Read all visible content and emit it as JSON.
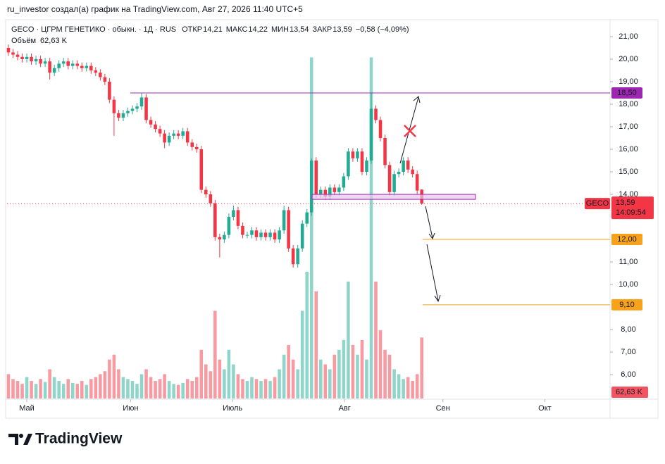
{
  "chart_data": {
    "type": "candlestick",
    "attribution": "ru_investor создал(а) график на TradingView.com, Авг 27, 2026 11:40 UTC+5",
    "symbol_line": "GECO · ЦГРМ ГЕНЕТИКО · обыкн. · 1Д · RUS",
    "last_bar": [
      {
        "name": "ОТКР",
        "value": 14.21,
        "label": "14,21"
      },
      {
        "name": "МАКС",
        "value": 14.22,
        "label": "14,22"
      },
      {
        "name": "МИН",
        "value": 13.54,
        "label": "13,54"
      },
      {
        "name": "ЗАКР",
        "value": 13.59,
        "label": "13,59"
      }
    ],
    "change": "−0,58 (−4,09%)",
    "colors": {
      "up": "#22ab94",
      "down": "#f23645"
    },
    "open": [
      20.5,
      20.3,
      20.2,
      20.1,
      20.0,
      20.1,
      19.9,
      20.0,
      19.8,
      19.9,
      19.4,
      19.6,
      19.8,
      19.9,
      19.7,
      19.8,
      19.7,
      19.6,
      19.7,
      19.5,
      19.4,
      19.2,
      19.0,
      18.2,
      17.6,
      17.4,
      17.6,
      17.7,
      17.8,
      17.9,
      18.3,
      17.3,
      17.1,
      16.9,
      16.7,
      16.3,
      16.6,
      16.7,
      16.6,
      16.8,
      16.3,
      16.1,
      16.0,
      14.2,
      14.0,
      13.6,
      12.1,
      12.0,
      12.2,
      13.0,
      13.3,
      12.6,
      12.2,
      12.2,
      12.4,
      12.1,
      12.3,
      12.1,
      12.3,
      12.0,
      12.4,
      13.3,
      11.6,
      10.9,
      11.6,
      12.7,
      13.2,
      15.5,
      14.0,
      14.2,
      13.9,
      14.3,
      14.1,
      14.3,
      14.8,
      15.9,
      15.6,
      15.9,
      15.0,
      15.5,
      17.8,
      17.3,
      16.5,
      15.3,
      14.1,
      14.9,
      15.0,
      15.5,
      15.1,
      14.9,
      14.21
    ],
    "high": [
      20.65,
      20.45,
      20.35,
      20.25,
      20.25,
      20.25,
      20.15,
      20.15,
      20.05,
      20.05,
      19.75,
      19.95,
      20.05,
      20.05,
      19.95,
      19.95,
      19.85,
      19.85,
      19.85,
      19.65,
      19.55,
      19.35,
      19.15,
      18.35,
      17.75,
      17.75,
      17.85,
      17.95,
      18.05,
      18.5,
      18.45,
      17.45,
      17.25,
      17.05,
      16.85,
      16.75,
      16.85,
      16.85,
      16.95,
      16.95,
      16.45,
      16.25,
      16.15,
      14.35,
      14.15,
      13.75,
      12.25,
      12.35,
      13.15,
      13.5,
      13.45,
      12.75,
      12.35,
      12.55,
      12.55,
      12.45,
      12.45,
      12.45,
      12.45,
      12.55,
      13.5,
      13.45,
      11.75,
      11.75,
      12.85,
      13.35,
      15.6,
      15.65,
      14.35,
      14.35,
      14.45,
      14.45,
      14.45,
      14.95,
      16.05,
      16.05,
      16.05,
      16.05,
      15.65,
      18.5,
      17.95,
      17.45,
      16.65,
      15.45,
      15.05,
      15.15,
      15.65,
      15.65,
      15.25,
      15.05,
      14.22
    ],
    "low": [
      20.15,
      20.05,
      19.95,
      19.85,
      19.85,
      19.75,
      19.75,
      19.65,
      19.65,
      19.1,
      19.25,
      19.45,
      19.65,
      19.55,
      19.55,
      19.55,
      19.45,
      19.45,
      19.35,
      19.25,
      19.05,
      18.85,
      18.05,
      16.6,
      17.25,
      17.25,
      17.45,
      17.55,
      17.65,
      17.75,
      17.15,
      16.95,
      16.75,
      16.55,
      16.05,
      16.15,
      16.45,
      16.45,
      16.45,
      16.15,
      15.95,
      15.85,
      14.05,
      13.85,
      13.45,
      11.95,
      11.2,
      11.85,
      12.05,
      12.85,
      12.45,
      12.05,
      12.05,
      12.05,
      11.95,
      11.95,
      11.95,
      11.95,
      11.85,
      11.85,
      12.25,
      11.45,
      10.75,
      10.75,
      11.45,
      12.55,
      13.05,
      13.85,
      13.85,
      13.75,
      13.75,
      13.95,
      13.95,
      14.15,
      14.65,
      15.45,
      15.45,
      14.85,
      14.85,
      15.35,
      17.15,
      16.35,
      15.15,
      13.95,
      13.95,
      14.75,
      14.85,
      14.95,
      14.75,
      14.02,
      13.54
    ],
    "close": [
      20.3,
      20.2,
      20.1,
      20.0,
      20.1,
      19.9,
      20.0,
      19.8,
      19.9,
      19.4,
      19.6,
      19.8,
      19.9,
      19.7,
      19.8,
      19.7,
      19.6,
      19.7,
      19.5,
      19.4,
      19.2,
      19.0,
      18.2,
      17.6,
      17.4,
      17.6,
      17.7,
      17.8,
      17.9,
      18.3,
      17.3,
      17.1,
      16.9,
      16.7,
      16.3,
      16.6,
      16.7,
      16.6,
      16.8,
      16.3,
      16.1,
      16.0,
      14.2,
      14.0,
      13.6,
      12.1,
      12.0,
      12.2,
      13.0,
      13.3,
      12.6,
      12.2,
      12.2,
      12.4,
      12.1,
      12.3,
      12.1,
      12.3,
      12.0,
      12.4,
      13.3,
      11.6,
      10.9,
      11.6,
      12.7,
      13.2,
      15.5,
      14.0,
      14.2,
      13.9,
      14.3,
      14.1,
      14.3,
      14.8,
      15.9,
      15.6,
      15.9,
      15.0,
      15.5,
      17.8,
      17.3,
      16.5,
      15.3,
      14.1,
      14.9,
      15.0,
      15.5,
      15.1,
      14.9,
      14.17,
      13.59
    ],
    "volume": {
      "name": "Объём",
      "last_label": "62,63 K",
      "values": [
        25,
        20,
        18,
        15,
        22,
        18,
        15,
        20,
        17,
        30,
        22,
        18,
        15,
        20,
        16,
        15,
        18,
        14,
        20,
        22,
        25,
        28,
        40,
        45,
        30,
        22,
        20,
        18,
        15,
        25,
        30,
        22,
        18,
        20,
        25,
        18,
        15,
        14,
        16,
        20,
        18,
        22,
        50,
        35,
        28,
        90,
        40,
        30,
        50,
        35,
        25,
        20,
        18,
        22,
        20,
        18,
        20,
        18,
        22,
        30,
        45,
        55,
        40,
        30,
        90,
        130,
        350,
        110,
        40,
        35,
        30,
        45,
        50,
        60,
        120,
        55,
        45,
        60,
        40,
        350,
        120,
        70,
        50,
        45,
        30,
        25,
        20,
        22,
        18,
        25,
        62.63
      ]
    },
    "volume_lim": [
      0,
      380
    ],
    "ylim": [
      4.94,
      21.375
    ],
    "yticks": [
      {
        "value": 6,
        "label": "6,00"
      },
      {
        "value": 7,
        "label": "7,00"
      },
      {
        "value": 8,
        "label": "8,00"
      },
      {
        "value": 10,
        "label": "10,00"
      },
      {
        "value": 11,
        "label": "11,00"
      },
      {
        "value": 14,
        "label": "14,00"
      },
      {
        "value": 15,
        "label": "15,00"
      },
      {
        "value": 16,
        "label": "16,00"
      },
      {
        "value": 17,
        "label": "17,00"
      },
      {
        "value": 18,
        "label": "18,00"
      },
      {
        "value": 19,
        "label": "19,00"
      },
      {
        "value": 20,
        "label": "20,00"
      },
      {
        "value": 21,
        "label": "21,00"
      }
    ],
    "xlim": [
      -0.3,
      131
    ],
    "xticks": [
      {
        "value": 4,
        "label": "Май"
      },
      {
        "value": 26.6,
        "label": "Июн"
      },
      {
        "value": 48.8,
        "label": "Июль"
      },
      {
        "value": 73.2,
        "label": "Авг"
      },
      {
        "value": 94.6,
        "label": "Сен"
      },
      {
        "value": 116.8,
        "label": "Окт"
      }
    ],
    "levels": [
      {
        "value": 18.5,
        "label": "18,50",
        "color": "#9c27b0"
      },
      {
        "value": 12,
        "label": "12,00",
        "color": "#f7a21b"
      },
      {
        "value": 9.1,
        "label": "9,10",
        "color": "#f7a21b"
      }
    ],
    "zone": {
      "low": 13.78,
      "high": 14.0,
      "color": "#e8c6ee"
    },
    "price_tag": {
      "symbol": "GECO",
      "value": 13.59,
      "label": "13,59",
      "countdown": "14:09:54"
    },
    "logo": "TradingView"
  }
}
